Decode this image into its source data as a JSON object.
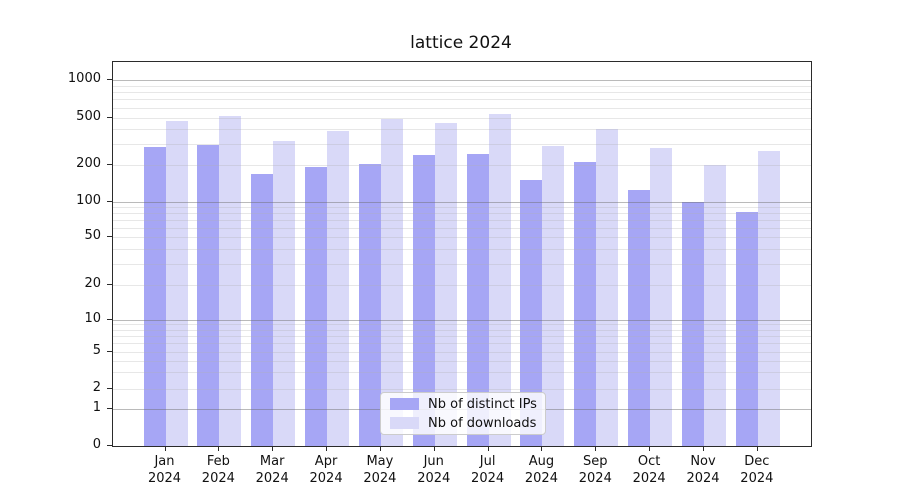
{
  "chart_data": {
    "type": "bar",
    "title": "lattice 2024",
    "categories": [
      "Jan",
      "Feb",
      "Mar",
      "Apr",
      "May",
      "Jun",
      "Jul",
      "Aug",
      "Sep",
      "Oct",
      "Nov",
      "Dec"
    ],
    "year": "2024",
    "series": [
      {
        "name": "Nb of distinct IPs",
        "color": "#a6a6f5",
        "values": [
          285,
          295,
          170,
          195,
          205,
          245,
          250,
          150,
          215,
          125,
          99,
          82
        ]
      },
      {
        "name": "Nb of downloads",
        "color": "#d9d9f8",
        "values": [
          465,
          510,
          320,
          385,
          490,
          450,
          530,
          290,
          400,
          280,
          202,
          265
        ]
      }
    ],
    "yticks": [
      0,
      1,
      2,
      5,
      10,
      20,
      50,
      100,
      200,
      500,
      1000
    ],
    "ylim": [
      0,
      1400
    ],
    "yscale": "log-with-zero",
    "grid": true,
    "legend_position": "lower center",
    "xlabel": "",
    "ylabel": ""
  },
  "colors": {
    "background": "#ffffff",
    "spine": "#2b2b2b",
    "text": "#111111",
    "grid_major": "#b9b9b9",
    "grid_minor": "#e6e6e6",
    "legend_border": "#cccccc"
  }
}
